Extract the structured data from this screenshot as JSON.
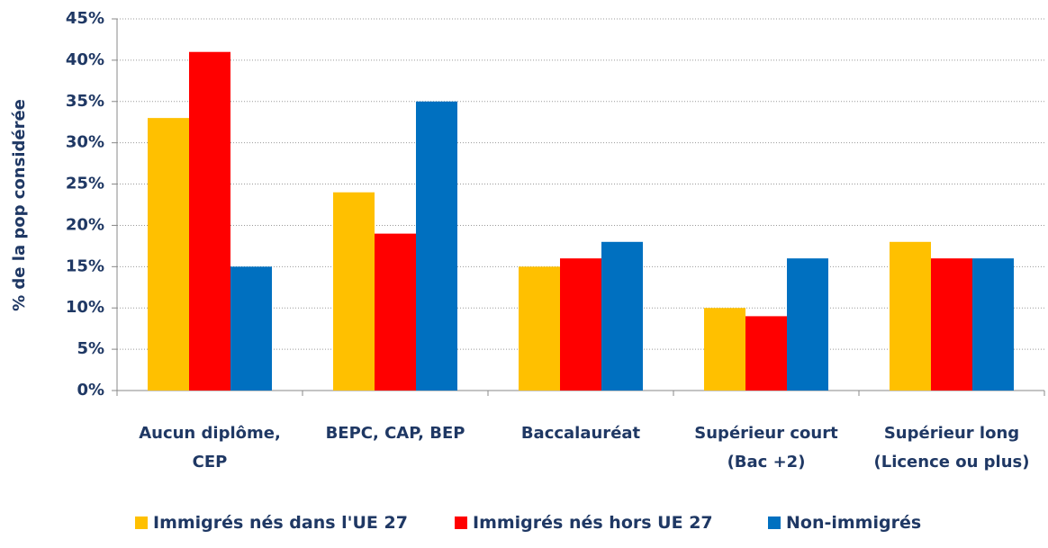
{
  "chart_data": {
    "type": "bar",
    "y_label": "% de la pop considérée",
    "categories": [
      "Aucun diplôme, CEP",
      "BEPC, CAP, BEP",
      "Baccalauréat",
      "Supérieur court (Bac +2)",
      "Supérieur long (Licence ou plus)"
    ],
    "series": [
      {
        "name": "Immigrés nés dans l'UE 27",
        "color": "#ffc000",
        "values": [
          33,
          24,
          15,
          10,
          18
        ]
      },
      {
        "name": "Immigrés nés hors UE 27",
        "color": "#ff0000",
        "values": [
          41,
          19,
          16,
          9,
          16
        ]
      },
      {
        "name": "Non-immigrés",
        "color": "#0070c0",
        "values": [
          15,
          35,
          18,
          16,
          16
        ]
      }
    ],
    "ylim": [
      0,
      45
    ],
    "yticks": [
      {
        "value": 0,
        "label": "0%"
      },
      {
        "value": 5,
        "label": "5%"
      },
      {
        "value": 10,
        "label": "10%"
      },
      {
        "value": 15,
        "label": "15%"
      },
      {
        "value": 20,
        "label": "20%"
      },
      {
        "value": 25,
        "label": "25%"
      },
      {
        "value": 30,
        "label": "30%"
      },
      {
        "value": 35,
        "label": "35%"
      },
      {
        "value": 40,
        "label": "40%"
      },
      {
        "value": 45,
        "label": "45%"
      }
    ],
    "grid": true,
    "legend": "bottom"
  }
}
